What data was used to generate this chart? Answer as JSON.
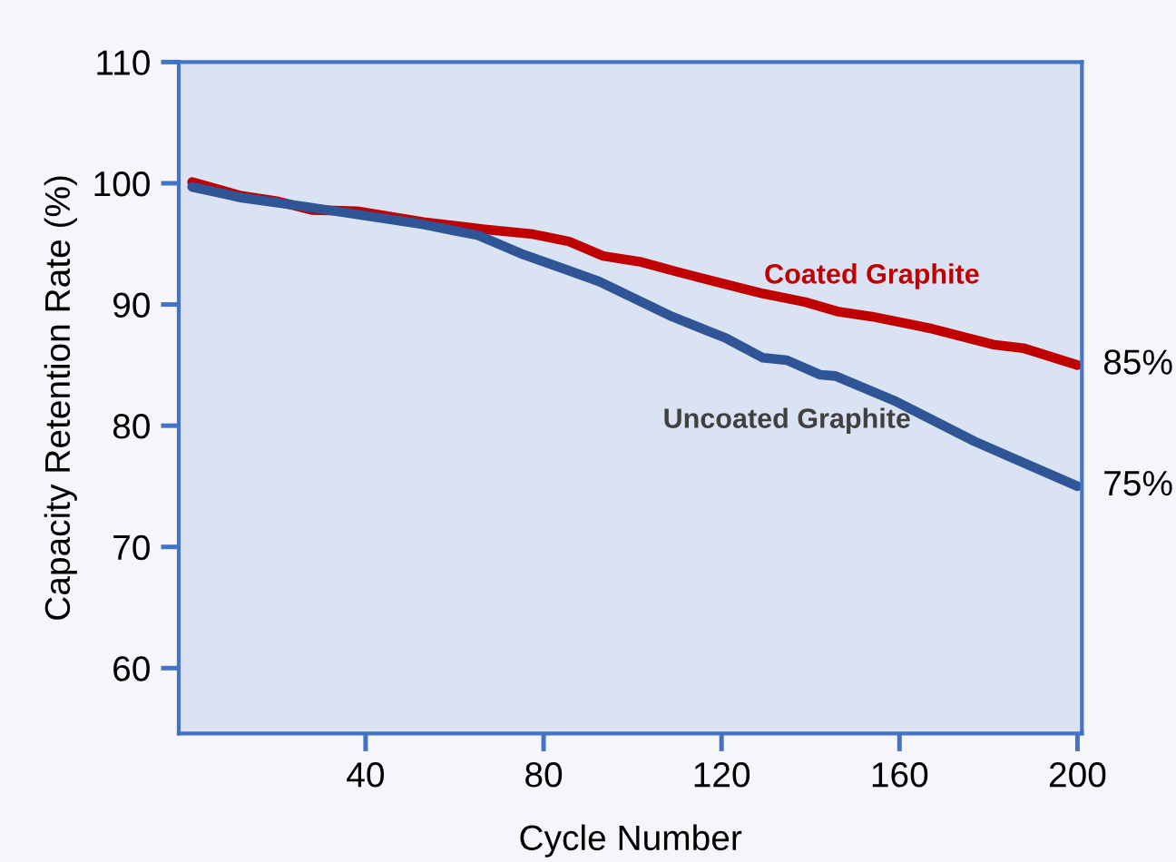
{
  "chart_data": {
    "type": "line",
    "xlabel": "Cycle Number",
    "ylabel": "Capacity Retention Rate (%)",
    "xlim": [
      -2,
      201
    ],
    "ylim": [
      54.6,
      110
    ],
    "xticks": [
      40,
      80,
      120,
      160,
      200
    ],
    "yticks": [
      60,
      70,
      80,
      90,
      100,
      110
    ],
    "grid": false,
    "legend": false,
    "marker": "none",
    "line_style": "solid",
    "series": [
      {
        "name": "Coated Graphite",
        "color": "#c00000",
        "x": [
          1,
          11.7,
          20.4,
          27.9,
          38.1,
          53,
          66.7,
          77.6,
          85.7,
          93.4,
          102,
          110,
          118.4,
          129.3,
          138.8,
          146.3,
          153.8,
          167.3,
          181,
          187.8,
          200
        ],
        "values": [
          100.1,
          99.0,
          98.5,
          97.8,
          97.7,
          96.8,
          96.2,
          95.8,
          95.2,
          94.0,
          93.5,
          92.7,
          91.9,
          90.9,
          90.2,
          89.4,
          89.0,
          88.0,
          86.7,
          86.4,
          85
        ]
      },
      {
        "name": "Uncoated Graphite",
        "color": "#2f5597",
        "x": [
          1,
          12.2,
          25.9,
          42.2,
          53,
          65.3,
          74.9,
          85.7,
          92.5,
          108.9,
          121.1,
          129.3,
          134.7,
          142.2,
          145.6,
          159.2,
          176.9,
          200
        ],
        "values": [
          99.7,
          98.8,
          98.1,
          97.2,
          96.6,
          95.7,
          94.2,
          92.8,
          91.9,
          89.0,
          87.2,
          85.6,
          85.4,
          84.2,
          84.1,
          82.0,
          78.7,
          75
        ]
      }
    ],
    "annotations": [
      {
        "text": "85%",
        "x": 200,
        "y": 85
      },
      {
        "text": "75%",
        "x": 200,
        "y": 75
      }
    ]
  }
}
